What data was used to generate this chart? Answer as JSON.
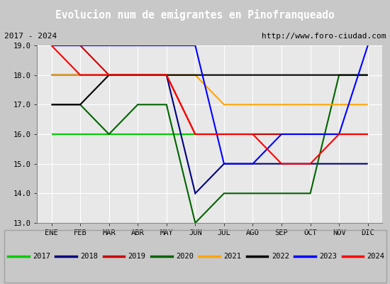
{
  "title": "Evolucion num de emigrantes en Pinofranqueado",
  "subtitle_left": "2017 - 2024",
  "subtitle_right": "http://www.foro-ciudad.com",
  "x_labels": [
    "ENE",
    "FEB",
    "MAR",
    "ABR",
    "MAY",
    "JUN",
    "JUL",
    "AGO",
    "SEP",
    "OCT",
    "NOV",
    "DIC"
  ],
  "ylim": [
    13.0,
    19.0
  ],
  "yticks": [
    13.0,
    14.0,
    15.0,
    16.0,
    17.0,
    18.0,
    19.0
  ],
  "series": {
    "2017": {
      "color": "#00cc00",
      "x": [
        0,
        1,
        2,
        3,
        4,
        5,
        6,
        7,
        8,
        9,
        10,
        11
      ],
      "y": [
        16,
        16,
        16,
        16,
        16,
        16,
        16,
        16,
        16,
        16,
        16,
        16
      ]
    },
    "2018": {
      "color": "#000080",
      "x": [
        0,
        1,
        2,
        3,
        4,
        5,
        6,
        7,
        8,
        9,
        10,
        11
      ],
      "y": [
        18,
        18,
        18,
        18,
        18,
        14,
        15,
        15,
        15,
        15,
        15,
        15
      ]
    },
    "2019": {
      "color": "#cc0000",
      "x": [
        0,
        1,
        2,
        3,
        4,
        5,
        6,
        7,
        8,
        9,
        10,
        11
      ],
      "y": [
        19,
        19,
        18,
        18,
        18,
        16,
        16,
        16,
        16,
        16,
        16,
        16
      ]
    },
    "2020": {
      "color": "#006400",
      "x": [
        0,
        1,
        2,
        3,
        4,
        5,
        6,
        7,
        8,
        9,
        10,
        11
      ],
      "y": [
        17,
        17,
        16,
        17,
        17,
        13,
        14,
        14,
        14,
        14,
        18,
        18
      ]
    },
    "2021": {
      "color": "#ffa500",
      "x": [
        0,
        1,
        2,
        3,
        4,
        5,
        6,
        7,
        8,
        9,
        10,
        11
      ],
      "y": [
        18,
        18,
        18,
        18,
        18,
        18,
        17,
        17,
        17,
        17,
        17,
        17
      ]
    },
    "2022": {
      "color": "#000000",
      "x": [
        0,
        1,
        2,
        3,
        4,
        5,
        6,
        7,
        8,
        9,
        10,
        11
      ],
      "y": [
        17,
        17,
        18,
        18,
        18,
        18,
        18,
        18,
        18,
        18,
        18,
        18
      ]
    },
    "2023": {
      "color": "#0000ff",
      "x": [
        0,
        1,
        2,
        3,
        4,
        5,
        6,
        7,
        8,
        9,
        10,
        11
      ],
      "y": [
        19,
        19,
        19,
        19,
        19,
        19,
        15,
        15,
        16,
        16,
        16,
        19
      ]
    },
    "2024": {
      "color": "#ff0000",
      "x": [
        0,
        1,
        2,
        3,
        4,
        5,
        6,
        7,
        8,
        9,
        10,
        11
      ],
      "y": [
        19,
        18,
        18,
        18,
        18,
        16,
        16,
        16,
        15,
        15,
        16,
        16
      ]
    }
  },
  "title_bg_color": "#4472c4",
  "title_color": "#ffffff",
  "subtitle_bg_color": "#d4d4d4",
  "plot_bg_color": "#e8e8e8",
  "grid_color": "#ffffff",
  "fig_bg_color": "#c8c8c8",
  "legend_bg_color": "#f0f0f0",
  "legend_border_color": "#a0a0a0"
}
